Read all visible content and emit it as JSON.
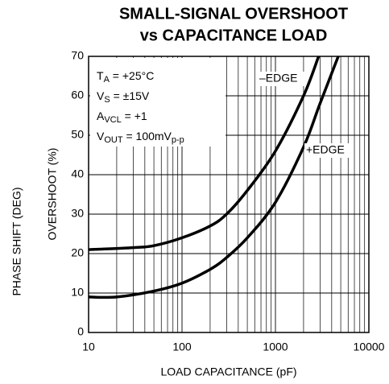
{
  "chart_data": {
    "type": "line",
    "title": [
      "SMALL-SIGNAL OVERSHOOT",
      "vs CAPACITANCE LOAD"
    ],
    "x_label": "LOAD CAPACITANCE (pF)",
    "y_label": "OVERSHOOT (%)",
    "y_label_2": "PHASE SHIFT (DEG)",
    "x_scale": "log",
    "xlim": [
      10,
      10000
    ],
    "xticks": [
      10,
      100,
      1000,
      10000
    ],
    "xminor_ticks": [
      20,
      30,
      40,
      50,
      60,
      70,
      80,
      90,
      200,
      300,
      400,
      500,
      600,
      700,
      800,
      900,
      2000,
      3000,
      4000,
      5000,
      6000,
      7000,
      8000,
      9000
    ],
    "ylim": [
      0,
      70
    ],
    "yticks": [
      0,
      10,
      20,
      30,
      40,
      50,
      60,
      70
    ],
    "grid": true,
    "annotations": [
      [
        {
          "text": "T"
        },
        {
          "text": "A",
          "sub": true
        },
        {
          "text": " = +25°C"
        }
      ],
      [
        {
          "text": "V"
        },
        {
          "text": "S",
          "sub": true
        },
        {
          "text": " = ±15V"
        }
      ],
      [
        {
          "text": "A"
        },
        {
          "text": "VCL",
          "sub": true
        },
        {
          "text": " = +1"
        }
      ],
      [
        {
          "text": "V"
        },
        {
          "text": "OUT",
          "sub": true
        },
        {
          "text": " = 100mV"
        },
        {
          "text": "p-p",
          "sub": true
        }
      ]
    ],
    "series": [
      {
        "name": "–EDGE",
        "color": "#000000",
        "x": [
          10,
          30,
          50,
          100,
          200,
          300,
          500,
          1000,
          2000,
          2900
        ],
        "values": [
          21,
          21.5,
          22,
          24,
          27,
          30,
          36,
          46,
          60,
          70
        ]
      },
      {
        "name": "+EDGE",
        "color": "#000000",
        "x": [
          10,
          20,
          50,
          100,
          200,
          300,
          500,
          1000,
          2000,
          3000,
          4700
        ],
        "values": [
          9,
          9,
          10.5,
          12.5,
          16,
          19,
          24,
          33,
          47,
          58,
          70
        ]
      }
    ]
  }
}
